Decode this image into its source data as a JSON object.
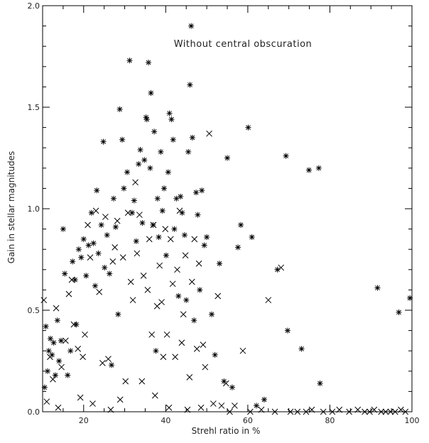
{
  "chart_data": {
    "type": "scatter",
    "title": "",
    "annotation": "Without central obscuration",
    "xlabel": "Strehl ratio in %",
    "ylabel": "Gain in stellar magnitudes",
    "xlim": [
      10,
      100
    ],
    "ylim": [
      0,
      2.0
    ],
    "x_ticks": [
      20,
      40,
      60,
      80,
      100
    ],
    "x_tick_labels": [
      "20",
      "40",
      "60",
      "80",
      "100"
    ],
    "y_ticks": [
      0.0,
      0.5,
      1.0,
      1.5,
      2.0
    ],
    "y_tick_labels": [
      "0.0",
      "0.5",
      "1.0",
      "1.5",
      "2.0"
    ],
    "grid": false,
    "series": [
      {
        "marker": "asterisk",
        "points": [
          [
            10.5,
            0.12
          ],
          [
            10.8,
            0.42
          ],
          [
            11.2,
            0.2
          ],
          [
            11.5,
            0.3
          ],
          [
            11.9,
            0.36
          ],
          [
            12.3,
            0.28
          ],
          [
            12.7,
            0.34
          ],
          [
            13.1,
            0.18
          ],
          [
            13.6,
            0.45
          ],
          [
            14.0,
            0.25
          ],
          [
            14.5,
            0.35
          ],
          [
            15.0,
            0.9
          ],
          [
            15.4,
            0.68
          ],
          [
            16.1,
            0.18
          ],
          [
            16.8,
            0.3
          ],
          [
            17.3,
            0.74
          ],
          [
            17.9,
            0.65
          ],
          [
            18.2,
            0.43
          ],
          [
            18.8,
            0.8
          ],
          [
            19.4,
            0.76
          ],
          [
            20.0,
            0.85
          ],
          [
            20.6,
            0.67
          ],
          [
            21.2,
            0.82
          ],
          [
            21.9,
            0.98
          ],
          [
            22.4,
            0.83
          ],
          [
            22.8,
            0.62
          ],
          [
            23.2,
            1.09
          ],
          [
            23.6,
            0.78
          ],
          [
            24.3,
            0.92
          ],
          [
            24.8,
            1.33
          ],
          [
            25.1,
            0.71
          ],
          [
            25.7,
            0.87
          ],
          [
            26.3,
            0.68
          ],
          [
            26.8,
            0.23
          ],
          [
            27.3,
            1.05
          ],
          [
            27.8,
            0.91
          ],
          [
            28.4,
            0.48
          ],
          [
            28.8,
            1.49
          ],
          [
            29.4,
            1.34
          ],
          [
            29.8,
            1.1
          ],
          [
            30.6,
            1.18
          ],
          [
            31.2,
            1.73
          ],
          [
            31.8,
            0.98
          ],
          [
            32.3,
            1.04
          ],
          [
            32.8,
            0.84
          ],
          [
            33.4,
            1.22
          ],
          [
            33.8,
            1.29
          ],
          [
            34.3,
            0.93
          ],
          [
            34.8,
            1.24
          ],
          [
            35.2,
            1.45
          ],
          [
            35.4,
            1.44
          ],
          [
            35.8,
            1.72
          ],
          [
            36.2,
            1.2
          ],
          [
            36.4,
            1.57
          ],
          [
            36.9,
            0.92
          ],
          [
            37.2,
            1.38
          ],
          [
            37.6,
            0.3
          ],
          [
            38.0,
            1.05
          ],
          [
            38.3,
            0.86
          ],
          [
            38.8,
            1.28
          ],
          [
            39.2,
            0.99
          ],
          [
            39.6,
            1.1
          ],
          [
            40.1,
            0.77
          ],
          [
            40.6,
            1.18
          ],
          [
            40.9,
            1.47
          ],
          [
            41.4,
            1.44
          ],
          [
            41.8,
            1.34
          ],
          [
            42.1,
            0.9
          ],
          [
            42.6,
            1.05
          ],
          [
            43.1,
            0.57
          ],
          [
            43.6,
            1.06
          ],
          [
            44.0,
            0.98
          ],
          [
            44.6,
            0.87
          ],
          [
            45.0,
            0.55
          ],
          [
            45.5,
            1.28
          ],
          [
            45.9,
            1.61
          ],
          [
            46.2,
            1.9
          ],
          [
            46.5,
            1.35
          ],
          [
            46.9,
            0.45
          ],
          [
            47.4,
            1.08
          ],
          [
            47.8,
            0.97
          ],
          [
            48.3,
            0.6
          ],
          [
            48.8,
            1.09
          ],
          [
            49.4,
            0.82
          ],
          [
            50.0,
            0.86
          ],
          [
            51.2,
            0.48
          ],
          [
            52.0,
            0.28
          ],
          [
            53.1,
            0.73
          ],
          [
            54.2,
            0.15
          ],
          [
            55.0,
            1.25
          ],
          [
            56.2,
            0.12
          ],
          [
            57.6,
            0.81
          ],
          [
            58.3,
            0.92
          ],
          [
            60.1,
            1.4
          ],
          [
            61.0,
            0.86
          ],
          [
            62.1,
            0.03
          ],
          [
            64.0,
            0.06
          ],
          [
            67.2,
            0.7
          ],
          [
            69.3,
            1.26
          ],
          [
            69.7,
            0.4
          ],
          [
            73.1,
            0.31
          ],
          [
            74.9,
            1.19
          ],
          [
            77.3,
            1.2
          ],
          [
            77.6,
            0.14
          ],
          [
            91.6,
            0.61
          ],
          [
            96.8,
            0.49
          ],
          [
            99.5,
            0.56
          ]
        ]
      },
      {
        "marker": "x",
        "points": [
          [
            10.3,
            0.55
          ],
          [
            11.0,
            0.05
          ],
          [
            11.8,
            0.27
          ],
          [
            12.5,
            0.16
          ],
          [
            13.3,
            0.51
          ],
          [
            13.8,
            0.02
          ],
          [
            14.6,
            0.22
          ],
          [
            15.6,
            0.35
          ],
          [
            16.4,
            0.58
          ],
          [
            17.1,
            0.65
          ],
          [
            17.6,
            0.43
          ],
          [
            18.6,
            0.31
          ],
          [
            19.2,
            0.07
          ],
          [
            19.8,
            0.27
          ],
          [
            20.3,
            0.38
          ],
          [
            21.0,
            0.92
          ],
          [
            21.6,
            0.76
          ],
          [
            22.2,
            0.04
          ],
          [
            23.0,
            0.99
          ],
          [
            23.8,
            0.59
          ],
          [
            24.6,
            0.24
          ],
          [
            25.3,
            0.96
          ],
          [
            26.0,
            0.26
          ],
          [
            26.6,
            0.01
          ],
          [
            27.1,
            0.74
          ],
          [
            27.6,
            0.81
          ],
          [
            28.2,
            0.94
          ],
          [
            28.9,
            0.06
          ],
          [
            29.6,
            0.76
          ],
          [
            30.2,
            0.15
          ],
          [
            30.8,
            0.98
          ],
          [
            31.5,
            0.64
          ],
          [
            32.0,
            0.55
          ],
          [
            32.6,
            1.13
          ],
          [
            33.0,
            0.78
          ],
          [
            33.6,
            0.97
          ],
          [
            34.2,
            0.15
          ],
          [
            34.6,
            0.67
          ],
          [
            35.6,
            0.6
          ],
          [
            36.0,
            0.85
          ],
          [
            36.6,
            0.38
          ],
          [
            37.0,
            0.92
          ],
          [
            37.4,
            0.08
          ],
          [
            37.9,
            0.52
          ],
          [
            38.5,
            0.72
          ],
          [
            39.0,
            0.54
          ],
          [
            39.4,
            0.27
          ],
          [
            39.9,
            0.9
          ],
          [
            40.3,
            0.38
          ],
          [
            40.8,
            0.02
          ],
          [
            41.2,
            0.85
          ],
          [
            41.7,
            0.63
          ],
          [
            42.3,
            0.27
          ],
          [
            42.8,
            0.7
          ],
          [
            43.4,
            0.99
          ],
          [
            43.9,
            0.34
          ],
          [
            44.3,
            0.48
          ],
          [
            44.8,
            0.77
          ],
          [
            45.3,
            0.01
          ],
          [
            45.8,
            0.17
          ],
          [
            46.4,
            0.64
          ],
          [
            47.0,
            0.85
          ],
          [
            47.6,
            0.31
          ],
          [
            48.1,
            0.73
          ],
          [
            48.6,
            0.02
          ],
          [
            49.1,
            0.33
          ],
          [
            49.6,
            0.22
          ],
          [
            50.6,
            1.37
          ],
          [
            51.6,
            0.04
          ],
          [
            52.7,
            0.57
          ],
          [
            53.6,
            0.03
          ],
          [
            54.7,
            0.14
          ],
          [
            55.6,
            0.0
          ],
          [
            56.8,
            0.03
          ],
          [
            58.8,
            0.3
          ],
          [
            60.6,
            0.0
          ],
          [
            63.3,
            0.01
          ],
          [
            65.0,
            0.55
          ],
          [
            66.6,
            0.0
          ],
          [
            68.1,
            0.71
          ],
          [
            70.4,
            0.0
          ],
          [
            72.1,
            0.0
          ],
          [
            74.2,
            0.0
          ],
          [
            75.6,
            0.01
          ],
          [
            78.4,
            0.0
          ],
          [
            80.6,
            0.0
          ],
          [
            82.3,
            0.01
          ],
          [
            84.7,
            0.0
          ],
          [
            86.8,
            0.01
          ],
          [
            88.5,
            0.0
          ],
          [
            89.7,
            0.0
          ],
          [
            90.8,
            0.01
          ],
          [
            92.5,
            0.0
          ],
          [
            93.6,
            0.0
          ],
          [
            94.8,
            0.0
          ],
          [
            95.9,
            0.0
          ],
          [
            97.3,
            0.01
          ],
          [
            98.4,
            0.0
          ]
        ]
      }
    ]
  }
}
